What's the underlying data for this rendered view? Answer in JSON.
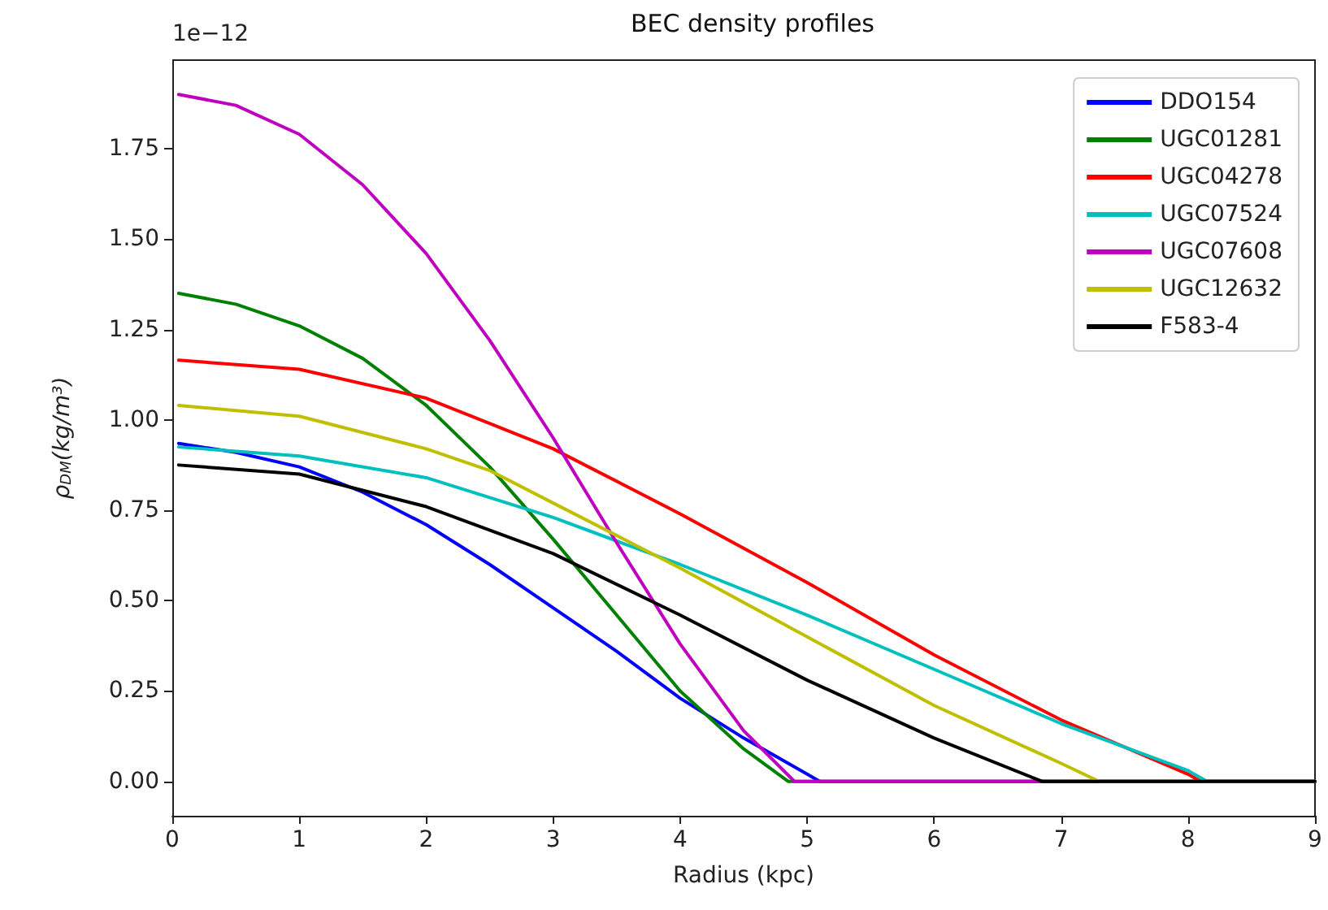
{
  "chart_data": {
    "type": "line",
    "title": "BEC density profiles",
    "xlabel": "Radius (kpc)",
    "ylabel": "ρ$_{DM}$(kg/m³)",
    "annotations": [
      "1e−12"
    ],
    "xlim": [
      0,
      9
    ],
    "xticks": [
      0,
      1,
      2,
      3,
      4,
      5,
      6,
      7,
      8,
      9
    ],
    "ylim": [
      -0.095,
      1.995
    ],
    "yticks": [
      {
        "value": 0,
        "label": "0.00"
      },
      {
        "value": 0.25,
        "label": "0.25"
      },
      {
        "value": 0.5,
        "label": "0.50"
      },
      {
        "value": 0.75,
        "label": "0.75"
      },
      {
        "value": 1,
        "label": "1.00"
      },
      {
        "value": 1.25,
        "label": "1.25"
      },
      {
        "value": 1.5,
        "label": "1.50"
      },
      {
        "value": 1.75,
        "label": "1.75"
      }
    ],
    "grid": false,
    "legend": "top right",
    "series": [
      {
        "name": "DDO154",
        "color": "#0000ff",
        "x": [
          0.05,
          0.5,
          1,
          1.5,
          2,
          2.5,
          3,
          3.5,
          4,
          4.5,
          5,
          5.1,
          9
        ],
        "values": [
          0.935,
          0.91,
          0.87,
          0.8,
          0.71,
          0.6,
          0.48,
          0.36,
          0.23,
          0.12,
          0.02,
          0,
          0
        ]
      },
      {
        "name": "UGC01281",
        "color": "#008000",
        "x": [
          0.05,
          0.5,
          1,
          1.5,
          2,
          2.5,
          3,
          3.5,
          4,
          4.5,
          4.85,
          9
        ],
        "values": [
          1.35,
          1.32,
          1.26,
          1.17,
          1.04,
          0.87,
          0.67,
          0.46,
          0.25,
          0.09,
          0,
          0
        ]
      },
      {
        "name": "UGC04278",
        "color": "#ff0000",
        "x": [
          0.05,
          1,
          2,
          3,
          4,
          5,
          6,
          7,
          8,
          8.1,
          9
        ],
        "values": [
          1.165,
          1.14,
          1.06,
          0.92,
          0.74,
          0.55,
          0.35,
          0.17,
          0.02,
          0,
          0
        ]
      },
      {
        "name": "UGC07524",
        "color": "#00bfbf",
        "x": [
          0.05,
          1,
          2,
          3,
          4,
          5,
          6,
          7,
          8,
          8.15,
          9
        ],
        "values": [
          0.925,
          0.9,
          0.84,
          0.73,
          0.6,
          0.46,
          0.31,
          0.16,
          0.03,
          0,
          0
        ]
      },
      {
        "name": "UGC07608",
        "color": "#bf00bf",
        "x": [
          0.05,
          0.5,
          1,
          1.5,
          2,
          2.5,
          3,
          3.5,
          4,
          4.5,
          4.9,
          9
        ],
        "values": [
          1.9,
          1.87,
          1.79,
          1.65,
          1.46,
          1.22,
          0.95,
          0.66,
          0.38,
          0.14,
          0,
          0
        ]
      },
      {
        "name": "UGC12632",
        "color": "#bfbf00",
        "x": [
          0.05,
          1,
          2,
          2.5,
          3,
          4,
          5,
          6,
          7,
          7.3,
          9
        ],
        "values": [
          1.04,
          1.01,
          0.92,
          0.86,
          0.77,
          0.59,
          0.4,
          0.21,
          0.05,
          0,
          0
        ]
      },
      {
        "name": "F583-4",
        "color": "#000000",
        "x": [
          0.05,
          1,
          2,
          3,
          4,
          5,
          6,
          6.85,
          9
        ],
        "values": [
          0.875,
          0.85,
          0.76,
          0.63,
          0.46,
          0.28,
          0.12,
          0,
          0
        ]
      }
    ]
  }
}
